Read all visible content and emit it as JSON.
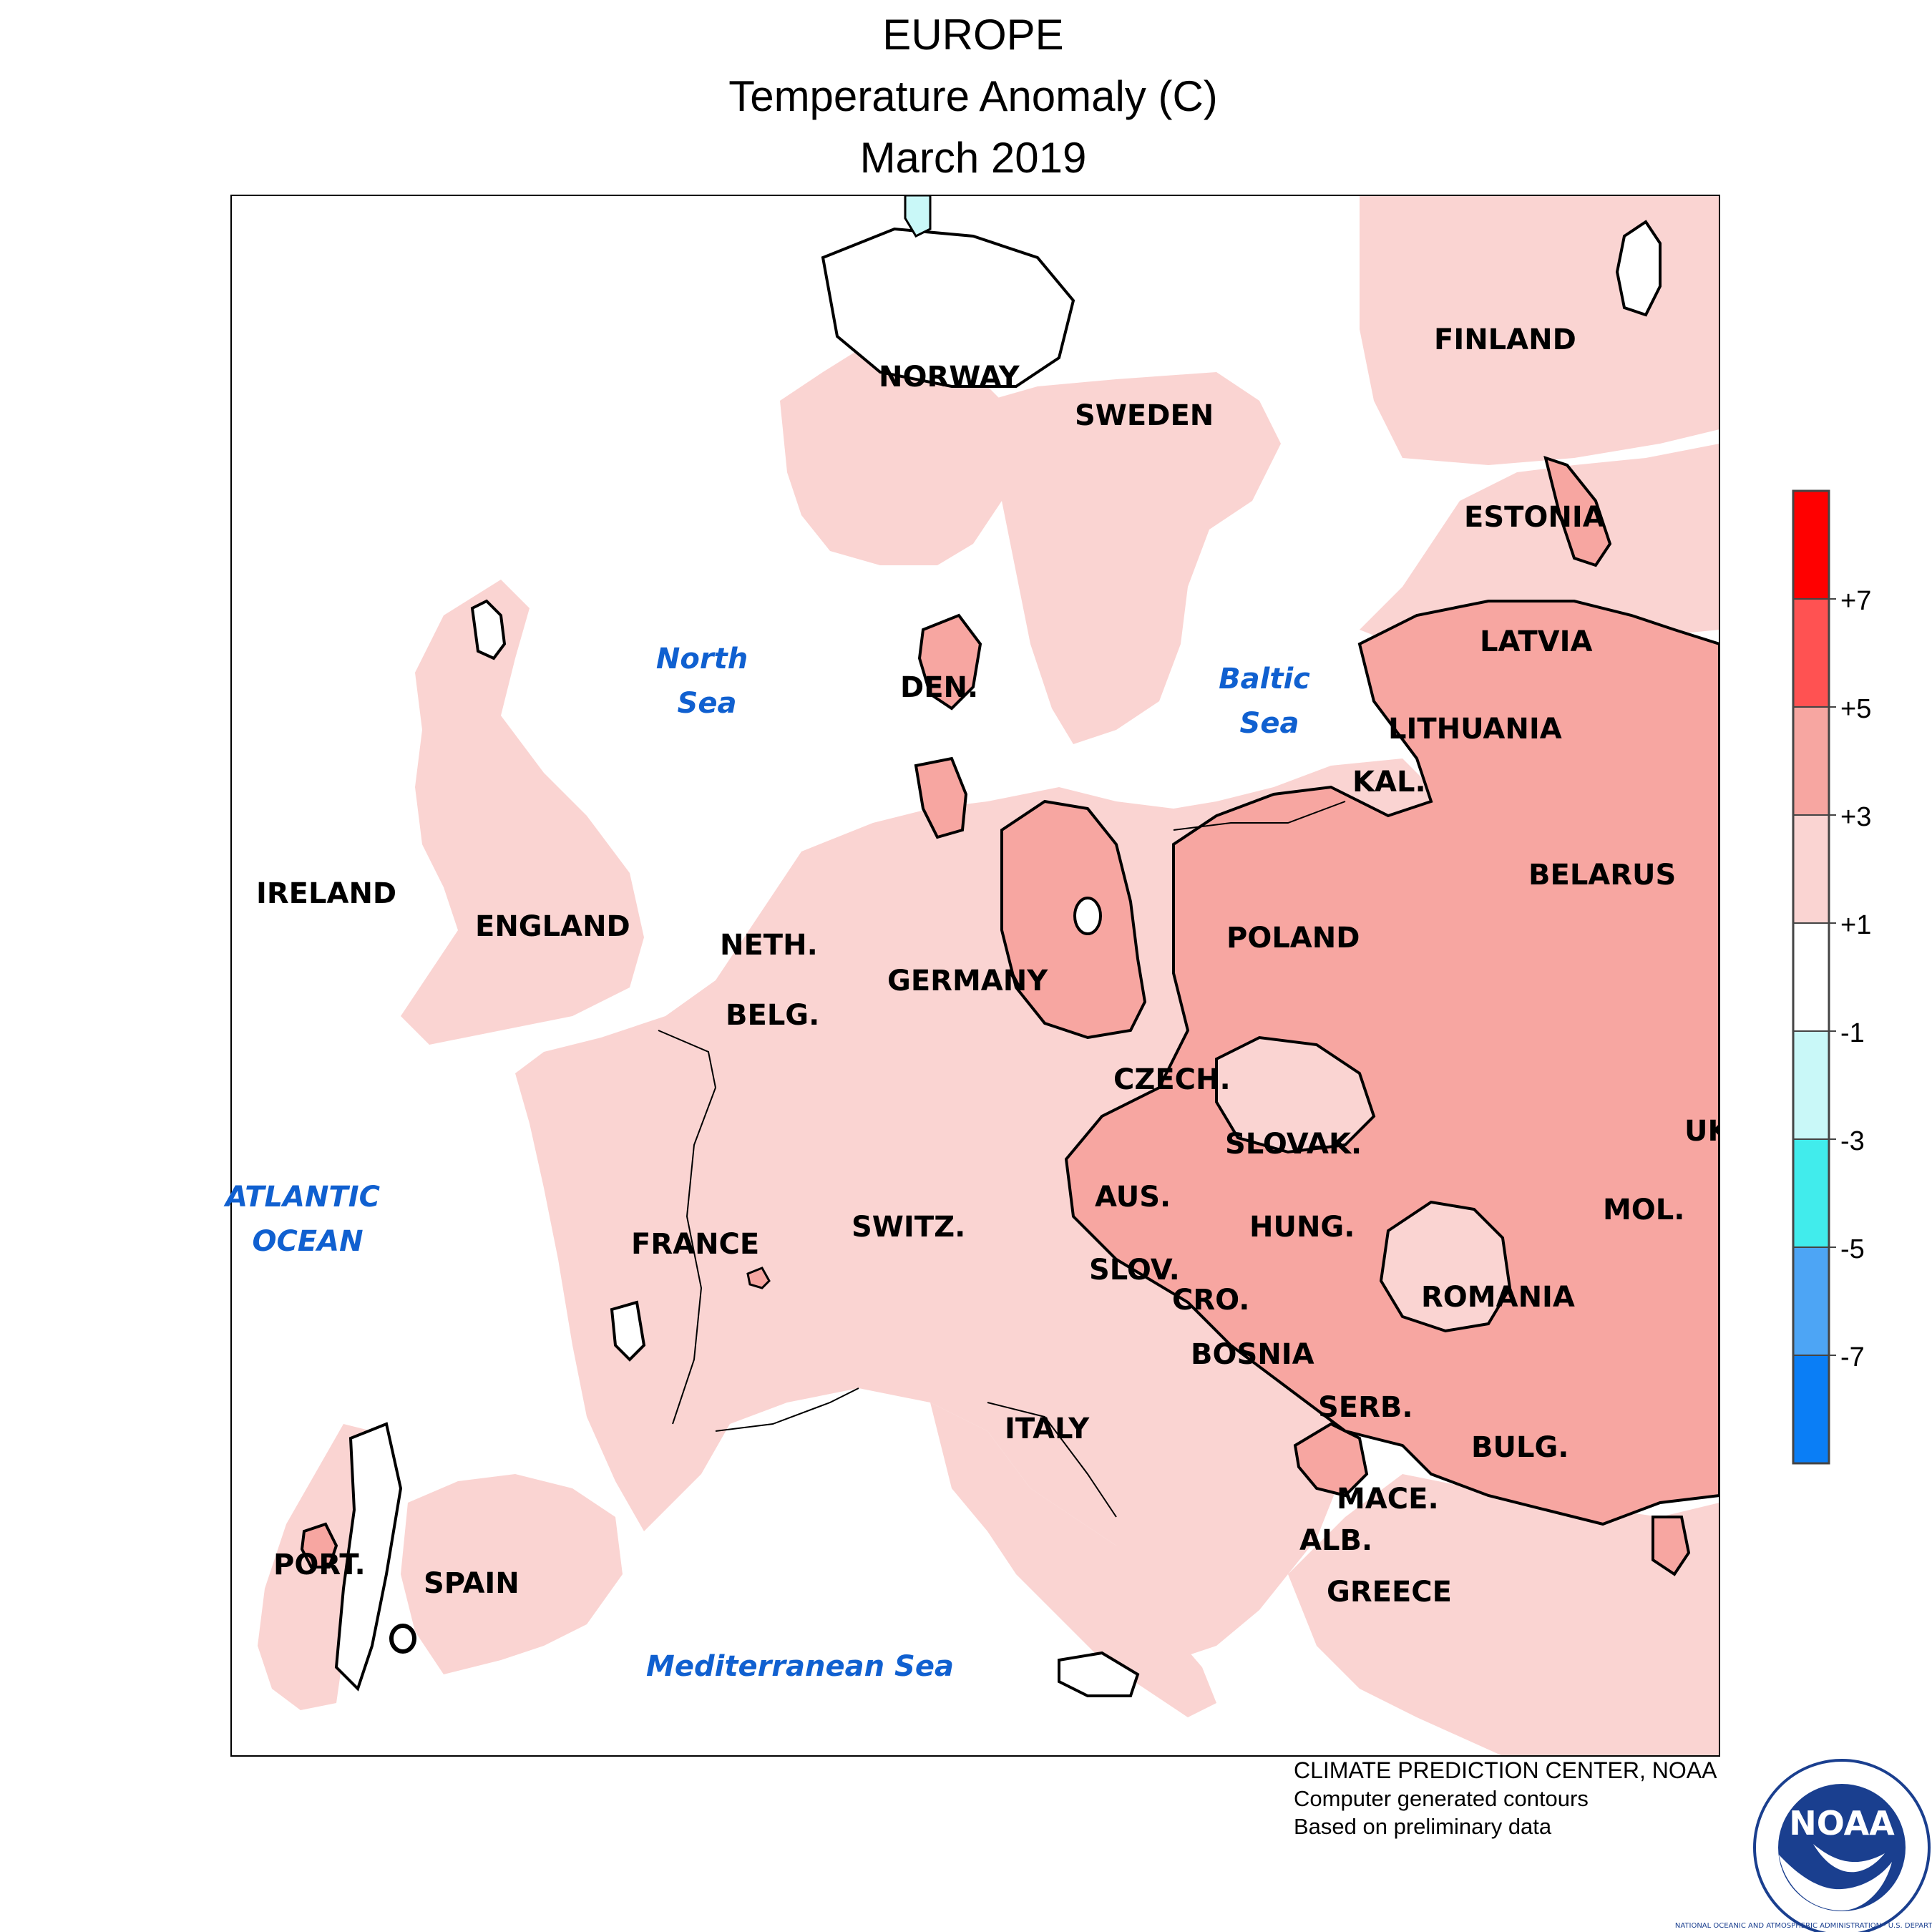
{
  "title": {
    "line1": "EUROPE",
    "line2": "Temperature Anomaly (C)",
    "line3": "March 2019"
  },
  "countries": [
    "NORWAY",
    "SWEDEN",
    "FINLAND",
    "ESTONIA",
    "LATVIA",
    "LITHUANIA",
    "KAL.",
    "BELARUS",
    "DEN.",
    "IRELAND",
    "ENGLAND",
    "NETH.",
    "BELG.",
    "GERMANY",
    "POLAND",
    "CZECH.",
    "SLOVAK.",
    "UK",
    "AUS.",
    "HUNG.",
    "MOL.",
    "SWITZ.",
    "FRANCE",
    "SLOV.",
    "CRO.",
    "ROMANIA",
    "BOSNIA",
    "SERB.",
    "BULG.",
    "ITALY",
    "MACE.",
    "ALB.",
    "PORT.",
    "SPAIN",
    "GREECE"
  ],
  "water_bodies": [
    "North Sea",
    "Baltic Sea",
    "ATLANTIC OCEAN",
    "Mediterranean Sea"
  ],
  "legend": {
    "tick_labels": [
      "+7",
      "+5",
      "+3",
      "+1",
      "-1",
      "-3",
      "-5",
      "-7"
    ],
    "colors_top_to_bottom": [
      "#ff0000",
      "#ff5252",
      "#f7a6a1",
      "#fad4d2",
      "#ffffff",
      "#c9f8f8",
      "#41ecec",
      "#4da5f5",
      "#0a7ef6"
    ]
  },
  "colors": {
    "label_blue": "#1060d0",
    "land_warm_1_3": "#fad4d2",
    "land_warm_3_5": "#f7a6a1",
    "land_cool_m1_m3": "#c9f8f8"
  },
  "credits": {
    "line1": "CLIMATE PREDICTION CENTER, NOAA",
    "line2": "Computer generated contours",
    "line3": "Based on preliminary data"
  },
  "logo": {
    "text": "NOAA",
    "ring": "NATIONAL OCEANIC AND ATMOSPHERIC ADMINISTRATION · U.S. DEPARTMENT OF COMMERCE"
  }
}
